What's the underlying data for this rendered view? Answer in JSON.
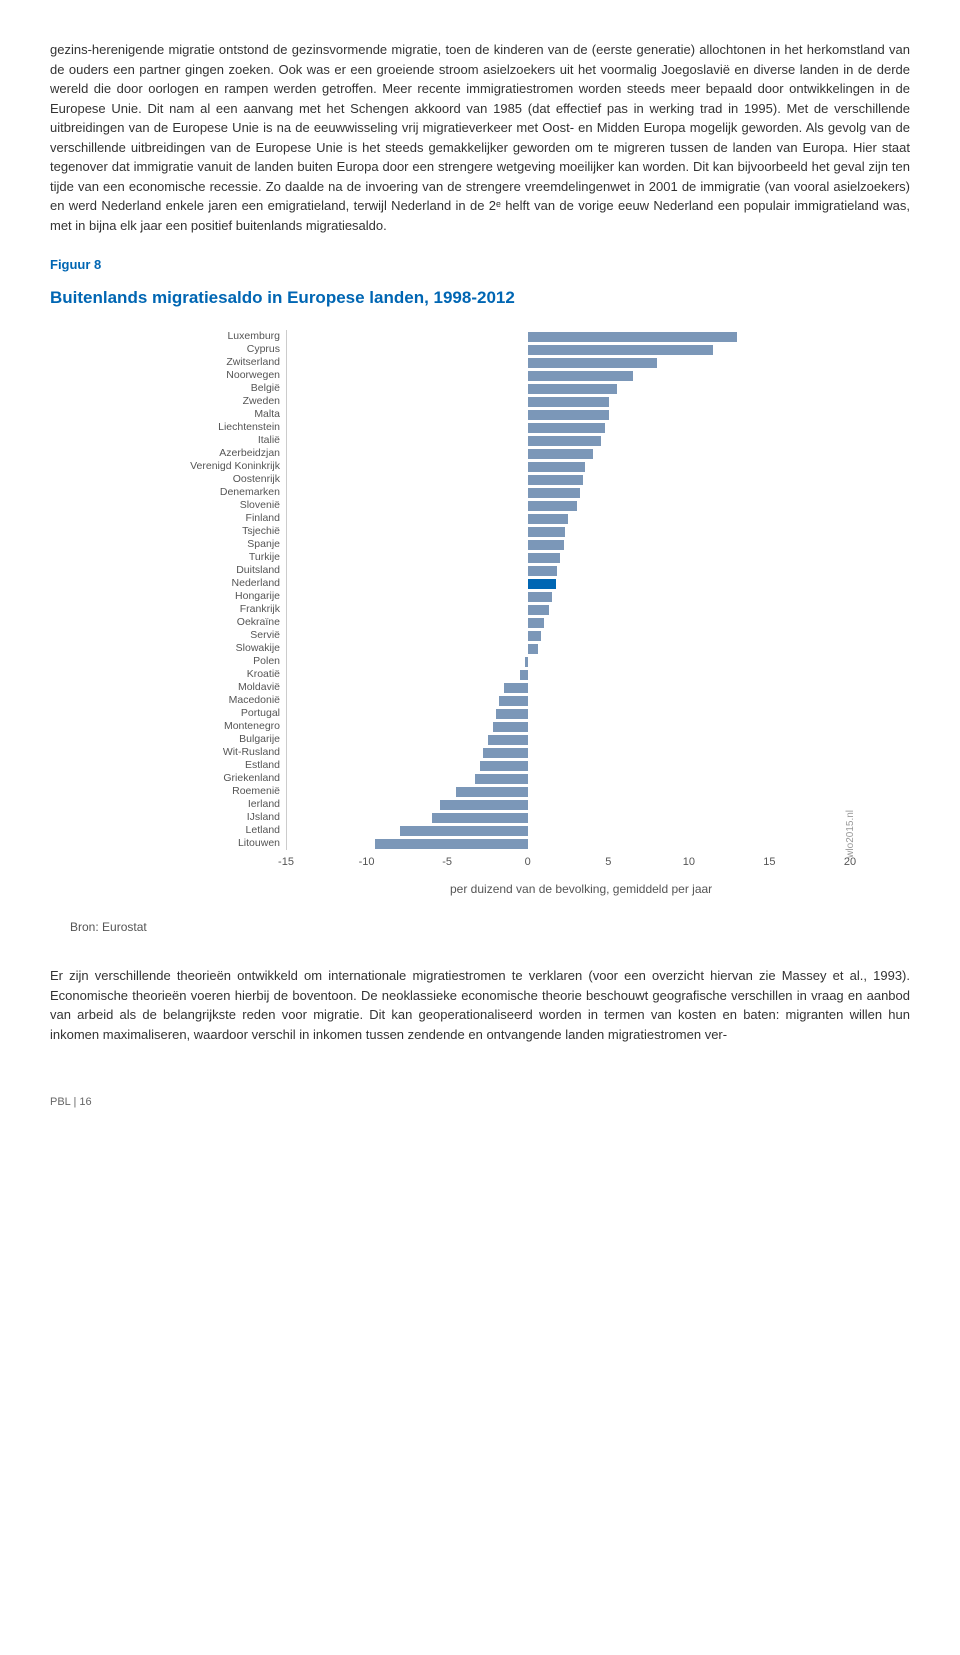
{
  "paragraph1": "gezins-herenigende migratie ontstond de gezinsvormende migratie, toen de kinderen van de (eerste generatie) allochtonen in het herkomstland van de ouders een partner gingen zoeken. Ook was er een groeiende stroom asielzoekers uit het voormalig Joegoslavië en diverse landen in de derde wereld die door oorlogen en rampen werden getroffen. Meer recente immigratiestromen worden steeds meer bepaald door ontwikkelingen in de Europese Unie. Dit nam al een aanvang met het Schengen akkoord van 1985 (dat effectief pas in werking trad in 1995). Met de verschillende uitbreidingen van de Europese Unie is na de eeuwwisseling vrij migratieverkeer met Oost- en Midden Europa mogelijk geworden. Als gevolg van de verschillende uitbreidingen van de Europese Unie is het steeds gemakkelijker geworden om te migreren tussen de landen van Europa. Hier staat tegenover dat immigratie vanuit de landen buiten Europa door een strengere wetgeving moeilijker kan worden. Dit kan bijvoorbeeld het geval zijn ten tijde van een economische recessie. Zo daalde na de invoering van de strengere vreemdelingenwet in 2001 de immigratie (van vooral asielzoekers) en werd Nederland enkele jaren een emigratieland, terwijl Nederland in de 2ᵉ helft van de vorige eeuw Nederland een populair immigratieland was, met in bijna elk jaar een positief buitenlands migratiesaldo.",
  "figure_label": "Figuur 8",
  "chart": {
    "title": "Buitenlands migratiesaldo in Europese landen, 1998-2012",
    "xmin": -15,
    "xmax": 20,
    "ticks": [
      -15,
      -10,
      -5,
      0,
      5,
      10,
      15,
      20
    ],
    "xlabel": "per duizend van de bevolking, gemiddeld per jaar",
    "bar_color": "#7b97b8",
    "highlight_color": "#0066b3",
    "source": "Bron: Eurostat",
    "credit": "wlo2015.nl",
    "countries": [
      {
        "label": "Luxemburg",
        "value": 13.0
      },
      {
        "label": "Cyprus",
        "value": 11.5
      },
      {
        "label": "Zwitserland",
        "value": 8.0
      },
      {
        "label": "Noorwegen",
        "value": 6.5
      },
      {
        "label": "België",
        "value": 5.5
      },
      {
        "label": "Zweden",
        "value": 5.0
      },
      {
        "label": "Malta",
        "value": 5.0
      },
      {
        "label": "Liechtenstein",
        "value": 4.8
      },
      {
        "label": "Italië",
        "value": 4.5
      },
      {
        "label": "Azerbeidzjan",
        "value": 4.0
      },
      {
        "label": "Verenigd Koninkrijk",
        "value": 3.5
      },
      {
        "label": "Oostenrijk",
        "value": 3.4
      },
      {
        "label": "Denemarken",
        "value": 3.2
      },
      {
        "label": "Slovenië",
        "value": 3.0
      },
      {
        "label": "Finland",
        "value": 2.5
      },
      {
        "label": "Tsjechië",
        "value": 2.3
      },
      {
        "label": "Spanje",
        "value": 2.2
      },
      {
        "label": "Turkije",
        "value": 2.0
      },
      {
        "label": "Duitsland",
        "value": 1.8
      },
      {
        "label": "Nederland",
        "value": 1.7,
        "highlight": true
      },
      {
        "label": "Hongarije",
        "value": 1.5
      },
      {
        "label": "Frankrijk",
        "value": 1.3
      },
      {
        "label": "Oekraïne",
        "value": 1.0
      },
      {
        "label": "Servië",
        "value": 0.8
      },
      {
        "label": "Slowakije",
        "value": 0.6
      },
      {
        "label": "Polen",
        "value": -0.2
      },
      {
        "label": "Kroatië",
        "value": -0.5
      },
      {
        "label": "Moldavië",
        "value": -1.5
      },
      {
        "label": "Macedonië",
        "value": -1.8
      },
      {
        "label": "Portugal",
        "value": -2.0
      },
      {
        "label": "Montenegro",
        "value": -2.2
      },
      {
        "label": "Bulgarije",
        "value": -2.5
      },
      {
        "label": "Wit-Rusland",
        "value": -2.8
      },
      {
        "label": "Estland",
        "value": -3.0
      },
      {
        "label": "Griekenland",
        "value": -3.3
      },
      {
        "label": "Roemenië",
        "value": -4.5
      },
      {
        "label": "Ierland",
        "value": -5.5
      },
      {
        "label": "IJsland",
        "value": -6.0
      },
      {
        "label": "Letland",
        "value": -8.0
      },
      {
        "label": "Litouwen",
        "value": -9.5
      }
    ]
  },
  "paragraph2": "Er zijn verschillende theorieën ontwikkeld om internationale migratiestromen te verklaren (voor een overzicht hiervan zie Massey et al., 1993). Economische theorieën voeren hierbij de boventoon. De neoklassieke economische theorie beschouwt geografische verschillen in vraag en aanbod van arbeid als de belangrijkste reden voor migratie. Dit kan geoperationaliseerd worden in termen van kosten en baten: migranten willen hun inkomen maximaliseren, waardoor verschil in inkomen tussen zendende en ontvangende landen migratiestromen ver-",
  "footer": "PBL | 16"
}
